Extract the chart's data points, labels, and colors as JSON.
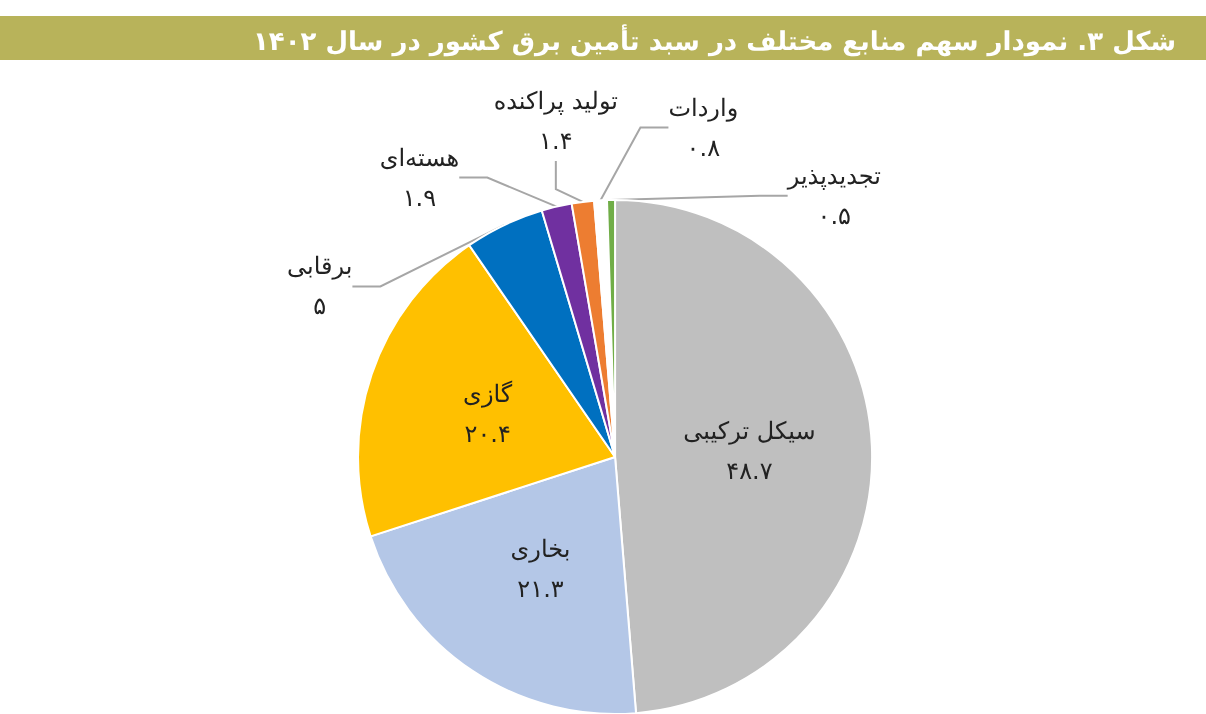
{
  "chart_data": {
    "type": "pie",
    "title": "شکل ۳. نمودار سهم منابع مختلف در سبد تأمین برق کشور در سال ۱۴۰۲",
    "categories": [
      "سیکل ترکیبی",
      "بخاری",
      "گازی",
      "برقابی",
      "هسته‌ای",
      "تولید پراکنده",
      "واردات",
      "تجدیدپذیر"
    ],
    "values": [
      48.7,
      21.3,
      20.4,
      5,
      1.9,
      1.4,
      0.8,
      0.5
    ],
    "value_labels": [
      "۴۸.۷",
      "۲۱.۳",
      "۲۰.۴",
      "۵",
      "۱.۹",
      "۱.۴",
      "۰.۸",
      "۰.۵"
    ],
    "colors": [
      "#bfbfbf",
      "#b4c7e7",
      "#ffc000",
      "#0070c0",
      "#7030a0",
      "#ed7d31",
      "#ffffff",
      "#70ad47"
    ],
    "legend": false
  }
}
